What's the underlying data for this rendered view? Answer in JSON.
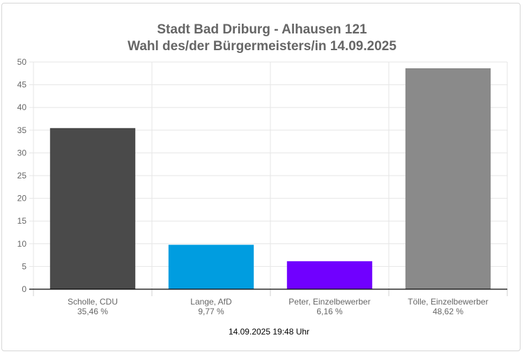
{
  "title_line1": "Stadt Bad Driburg - Alhausen 121",
  "title_line2": "Wahl des/der Bürgermeisters/in 14.09.2025",
  "footer_timestamp": "14.09.2025 19:48 Uhr",
  "chart_data": {
    "type": "bar",
    "title": "Stadt Bad Driburg - Alhausen 121 / Wahl des/der Bürgermeisters/in 14.09.2025",
    "categories": [
      "Scholle, CDU",
      "Lange, AfD",
      "Peter, Einzelbewerber",
      "Tölle, Einzelbewerber"
    ],
    "value_labels": [
      "35,46 %",
      "9,77 %",
      "6,16 %",
      "48,62 %"
    ],
    "values": [
      35.46,
      9.77,
      6.16,
      48.62
    ],
    "colors": [
      "#4a4a4a",
      "#009de0",
      "#7000ff",
      "#8a8a8a"
    ],
    "ylim": [
      0,
      50
    ],
    "yticks": [
      "0",
      "5",
      "10",
      "15",
      "20",
      "25",
      "30",
      "35",
      "40",
      "45",
      "50"
    ],
    "grid": true,
    "xlabel": "",
    "ylabel": ""
  }
}
